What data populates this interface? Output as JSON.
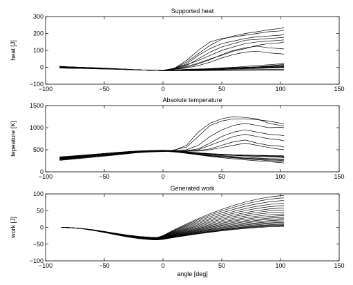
{
  "chart_data": [
    {
      "type": "line",
      "title": "Supported heat",
      "xlabel": "",
      "ylabel": "heat [J]",
      "xlim": [
        -100,
        150
      ],
      "ylim": [
        -100,
        300
      ],
      "xticks": [
        "−100",
        "−50",
        "0",
        "50",
        "100",
        "150"
      ],
      "yticks": [
        "−100",
        "0",
        "100",
        "200",
        "300"
      ],
      "grid": false,
      "x": [
        -88,
        -80,
        -70,
        -60,
        -50,
        -40,
        -30,
        -20,
        -10,
        -5,
        0,
        5,
        10,
        20,
        30,
        40,
        50,
        60,
        70,
        80,
        90,
        100,
        103
      ],
      "series": [
        {
          "values": [
            5,
            3,
            0,
            -2,
            -5,
            -8,
            -12,
            -15,
            -18,
            -19,
            -20,
            -15,
            -5,
            30,
            80,
            130,
            165,
            185,
            200,
            210,
            222,
            230,
            235
          ]
        },
        {
          "values": [
            2,
            0,
            -2,
            -4,
            -6,
            -9,
            -12,
            -15,
            -18,
            -19,
            -20,
            -14,
            -4,
            40,
            100,
            150,
            170,
            180,
            190,
            200,
            210,
            215,
            220
          ]
        },
        {
          "values": [
            0,
            -1,
            -3,
            -5,
            -7,
            -10,
            -13,
            -15,
            -18,
            -19,
            -19,
            -13,
            -6,
            20,
            70,
            110,
            140,
            155,
            170,
            180,
            185,
            190,
            195
          ]
        },
        {
          "values": [
            -2,
            -3,
            -4,
            -6,
            -8,
            -10,
            -12,
            -15,
            -18,
            -19,
            -19,
            -14,
            -8,
            10,
            50,
            90,
            120,
            140,
            160,
            165,
            170,
            175,
            178
          ]
        },
        {
          "values": [
            4,
            2,
            0,
            -3,
            -6,
            -9,
            -12,
            -15,
            -17,
            -18,
            -18,
            -12,
            -5,
            15,
            40,
            70,
            100,
            120,
            140,
            150,
            155,
            160,
            162
          ]
        },
        {
          "values": [
            -3,
            -4,
            -5,
            -7,
            -9,
            -11,
            -13,
            -15,
            -18,
            -19,
            -20,
            -16,
            -10,
            5,
            25,
            50,
            70,
            95,
            110,
            130,
            140,
            145,
            150
          ]
        },
        {
          "values": [
            1,
            0,
            -2,
            -5,
            -8,
            -11,
            -14,
            -16,
            -18,
            -19,
            -19,
            -15,
            -10,
            0,
            20,
            45,
            75,
            100,
            115,
            125,
            115,
            110,
            108
          ]
        },
        {
          "values": [
            -4,
            -5,
            -6,
            -8,
            -10,
            -12,
            -14,
            -16,
            -18,
            -19,
            -19,
            -16,
            -12,
            -5,
            10,
            30,
            55,
            75,
            90,
            95,
            85,
            80,
            78
          ]
        },
        {
          "values": [
            3,
            1,
            -1,
            -4,
            -7,
            -10,
            -13,
            -15,
            -18,
            -19,
            -20,
            -18,
            -16,
            -12,
            -10,
            -8,
            -5,
            -3,
            0,
            3,
            5,
            8,
            10
          ]
        },
        {
          "values": [
            -1,
            -2,
            -4,
            -6,
            -8,
            -11,
            -14,
            -16,
            -18,
            -19,
            -19,
            -18,
            -17,
            -14,
            -12,
            -10,
            -7,
            -4,
            -2,
            0,
            3,
            5,
            6
          ]
        },
        {
          "values": [
            6,
            3,
            0,
            -3,
            -6,
            -9,
            -12,
            -15,
            -17,
            -18,
            -18,
            -17,
            -16,
            -14,
            -12,
            -9,
            -6,
            -4,
            -1,
            2,
            5,
            10,
            12
          ]
        },
        {
          "values": [
            -5,
            -6,
            -7,
            -8,
            -10,
            -12,
            -14,
            -16,
            -18,
            -19,
            -20,
            -19,
            -18,
            -16,
            -14,
            -12,
            -10,
            -8,
            -6,
            -4,
            -2,
            0,
            1
          ]
        },
        {
          "values": [
            0,
            -1,
            -2,
            -4,
            -6,
            -9,
            -12,
            -15,
            -18,
            -19,
            -19,
            -18,
            -17,
            -16,
            -15,
            -13,
            -10,
            -8,
            -5,
            -3,
            0,
            2,
            3
          ]
        },
        {
          "values": [
            2,
            1,
            -1,
            -3,
            -6,
            -9,
            -12,
            -15,
            -17,
            -18,
            -19,
            -18,
            -18,
            -17,
            -16,
            -15,
            -13,
            -11,
            -9,
            -7,
            -5,
            -3,
            -2
          ]
        },
        {
          "values": [
            -2,
            -3,
            -4,
            -6,
            -8,
            -10,
            -13,
            -15,
            -18,
            -19,
            -20,
            -20,
            -19,
            -19,
            -18,
            -17,
            -16,
            -15,
            -14,
            -13,
            -12,
            -12,
            -12
          ]
        },
        {
          "values": [
            4,
            2,
            0,
            -3,
            -6,
            -9,
            -12,
            -15,
            -18,
            -19,
            -20,
            -20,
            -20,
            -20,
            -20,
            -19,
            -19,
            -18,
            -18,
            -18,
            -18,
            -18,
            -18
          ]
        },
        {
          "values": [
            1,
            0,
            -2,
            -4,
            -7,
            -10,
            -13,
            -16,
            -18,
            -19,
            -20,
            -19,
            -19,
            -18,
            -17,
            -15,
            -12,
            -8,
            -3,
            2,
            8,
            15,
            18
          ]
        },
        {
          "values": [
            -3,
            -4,
            -5,
            -7,
            -9,
            -11,
            -13,
            -15,
            -17,
            -18,
            -19,
            -18,
            -17,
            -15,
            -12,
            -8,
            -4,
            0,
            5,
            10,
            15,
            20,
            22
          ]
        }
      ]
    },
    {
      "type": "line",
      "title": "Absolute temperature",
      "xlabel": "",
      "ylabel": "tepeature [K]",
      "xlim": [
        -100,
        150
      ],
      "ylim": [
        0,
        1500
      ],
      "xticks": [
        "−100",
        "−50",
        "0",
        "50",
        "100",
        "150"
      ],
      "yticks": [
        "0",
        "500",
        "1000",
        "1500"
      ],
      "grid": false,
      "x": [
        -88,
        -80,
        -70,
        -60,
        -50,
        -40,
        -30,
        -20,
        -10,
        -5,
        0,
        5,
        10,
        20,
        30,
        40,
        50,
        60,
        70,
        80,
        90,
        100,
        103
      ],
      "series": [
        {
          "values": [
            300,
            320,
            340,
            360,
            380,
            400,
            420,
            440,
            450,
            460,
            470,
            480,
            500,
            560,
            800,
            1050,
            1150,
            1200,
            1200,
            1180,
            1150,
            1100,
            1080
          ]
        },
        {
          "values": [
            280,
            300,
            320,
            345,
            370,
            395,
            420,
            440,
            455,
            460,
            465,
            470,
            490,
            600,
            900,
            1100,
            1200,
            1250,
            1230,
            1200,
            1100,
            1050,
            1040
          ]
        },
        {
          "values": [
            310,
            330,
            350,
            370,
            390,
            410,
            430,
            450,
            460,
            465,
            470,
            475,
            480,
            500,
            600,
            800,
            950,
            1050,
            1100,
            1050,
            1000,
            1010,
            1000
          ]
        },
        {
          "values": [
            290,
            310,
            330,
            350,
            375,
            400,
            425,
            445,
            455,
            460,
            465,
            470,
            470,
            480,
            520,
            650,
            800,
            900,
            950,
            900,
            850,
            830,
            820
          ]
        },
        {
          "values": [
            320,
            335,
            355,
            375,
            395,
            415,
            435,
            455,
            465,
            470,
            470,
            468,
            465,
            470,
            500,
            600,
            700,
            800,
            850,
            800,
            750,
            720,
            700
          ]
        },
        {
          "values": [
            300,
            315,
            335,
            355,
            375,
            395,
            415,
            435,
            450,
            455,
            460,
            462,
            460,
            465,
            480,
            520,
            600,
            680,
            720,
            650,
            600,
            580,
            560
          ]
        },
        {
          "values": [
            270,
            290,
            310,
            330,
            355,
            380,
            410,
            440,
            460,
            465,
            470,
            472,
            470,
            468,
            470,
            500,
            550,
            600,
            650,
            600,
            550,
            510,
            500
          ]
        },
        {
          "values": [
            330,
            345,
            365,
            385,
            405,
            425,
            445,
            460,
            470,
            472,
            475,
            470,
            460,
            440,
            420,
            400,
            380,
            370,
            360,
            350,
            340,
            330,
            320
          ]
        },
        {
          "values": [
            300,
            320,
            345,
            370,
            395,
            420,
            440,
            455,
            465,
            470,
            470,
            465,
            455,
            430,
            400,
            370,
            350,
            330,
            310,
            300,
            290,
            280,
            275
          ]
        },
        {
          "values": [
            280,
            300,
            325,
            350,
            380,
            410,
            435,
            455,
            465,
            468,
            470,
            460,
            450,
            420,
            390,
            360,
            340,
            320,
            300,
            290,
            270,
            260,
            255
          ]
        },
        {
          "values": [
            310,
            330,
            350,
            375,
            400,
            425,
            445,
            460,
            468,
            470,
            470,
            462,
            452,
            425,
            395,
            365,
            340,
            315,
            295,
            275,
            255,
            235,
            230
          ]
        },
        {
          "values": [
            290,
            305,
            325,
            350,
            375,
            400,
            425,
            445,
            460,
            465,
            465,
            458,
            448,
            420,
            385,
            350,
            320,
            295,
            270,
            250,
            230,
            210,
            200
          ]
        },
        {
          "values": [
            320,
            340,
            365,
            390,
            415,
            440,
            460,
            475,
            485,
            488,
            490,
            485,
            475,
            455,
            430,
            410,
            395,
            385,
            380,
            375,
            370,
            365,
            360
          ]
        },
        {
          "values": [
            300,
            310,
            330,
            355,
            380,
            405,
            430,
            450,
            462,
            466,
            468,
            465,
            458,
            440,
            420,
            400,
            385,
            375,
            365,
            355,
            345,
            340,
            335
          ]
        },
        {
          "values": [
            260,
            280,
            305,
            330,
            360,
            390,
            420,
            445,
            460,
            465,
            468,
            463,
            455,
            435,
            410,
            385,
            365,
            345,
            330,
            315,
            300,
            290,
            285
          ]
        },
        {
          "values": [
            340,
            355,
            375,
            395,
            415,
            435,
            455,
            470,
            478,
            480,
            480,
            476,
            468,
            450,
            430,
            412,
            398,
            386,
            376,
            368,
            360,
            352,
            348
          ]
        }
      ]
    },
    {
      "type": "line",
      "title": "Generated work",
      "xlabel": "angle [deg]",
      "ylabel": "work [J]",
      "xlim": [
        -100,
        150
      ],
      "ylim": [
        -100,
        100
      ],
      "xticks": [
        "−100",
        "−50",
        "0",
        "50",
        "100",
        "150"
      ],
      "yticks": [
        "−100",
        "−50",
        "0",
        "50",
        "100"
      ],
      "grid": false,
      "x": [
        -87,
        -80,
        -70,
        -60,
        -50,
        -40,
        -30,
        -20,
        -10,
        -5,
        0,
        5,
        10,
        20,
        30,
        40,
        50,
        60,
        70,
        80,
        90,
        100,
        103
      ],
      "peaks": [
        95,
        88,
        80,
        72,
        65,
        58,
        52,
        46,
        40,
        35,
        30,
        26,
        22,
        18,
        15,
        12,
        9,
        7,
        5,
        3
      ]
    }
  ]
}
